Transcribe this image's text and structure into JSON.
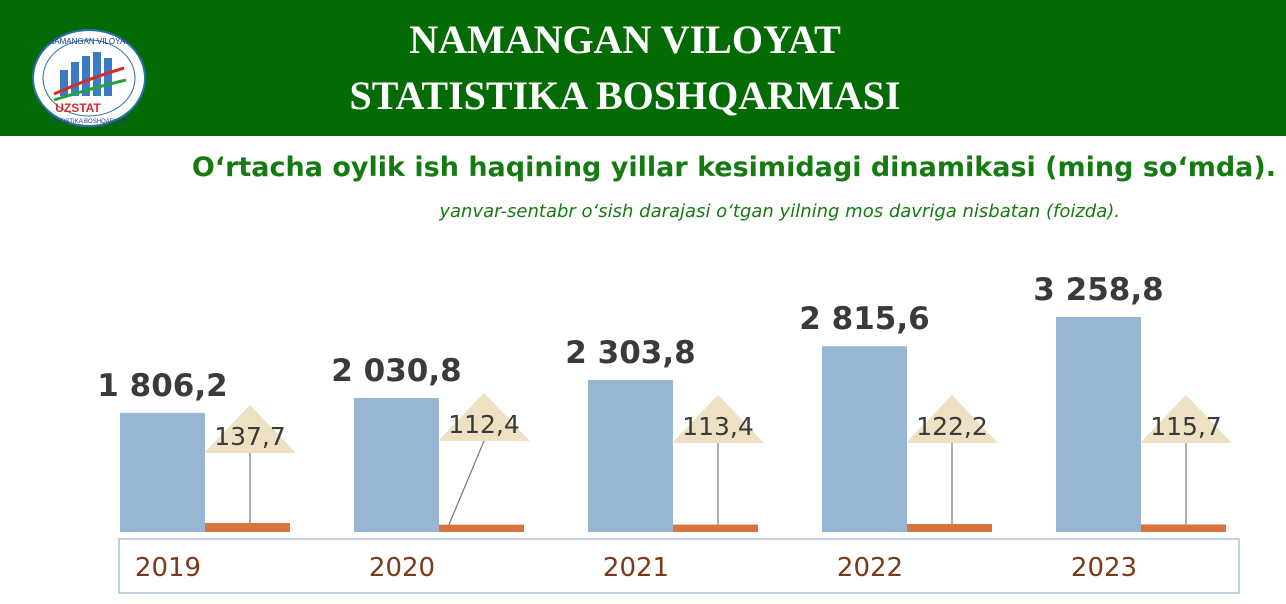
{
  "header": {
    "title_line1": "NAMANGAN VILOYAT",
    "title_line2": "STATISTIKA BOSHQARMASI"
  },
  "logo": {
    "icon": "uzstat-logo-icon",
    "text_top": "NAMANGAN VILOYAT",
    "text_brand": "UZSTAT",
    "text_bottom": "STATISTIKA BOSHQARMASI"
  },
  "colors": {
    "header_bg": "#046a04",
    "title_green": "#157a12",
    "wage_bar": "#96b6d4",
    "growth_bar": "#d9743e",
    "growth_label_bg": "#eee0c2",
    "year_text": "#7a3a1a",
    "value_text": "#3a3a3a",
    "axis_box": "#a9c3da"
  },
  "chart_data": {
    "type": "bar",
    "title": "O‘rtacha oylik ish haqining yillar kesimidagi dinamikasi (ming so‘mda).",
    "subtitle": "yanvar-sentabr o‘sish darajasi o‘tgan yilning mos davriga nisbatan (foizda).",
    "categories": [
      "2019",
      "2020",
      "2021",
      "2022",
      "2023"
    ],
    "series": [
      {
        "values": [
          1806.2,
          2030.8,
          2303.8,
          2815.6,
          3258.8
        ],
        "labels": [
          "1 806,2",
          "2 030,8",
          "2 303,8",
          "2 815,6",
          "3 258,8"
        ]
      },
      {
        "values": [
          137.7,
          112.4,
          113.4,
          122.2,
          115.7
        ],
        "labels": [
          "137,7",
          "112,4",
          "113,4",
          "122,2",
          "115,7"
        ]
      }
    ],
    "ylim": [
      0,
      3500
    ],
    "grid": false,
    "legend": "none"
  }
}
